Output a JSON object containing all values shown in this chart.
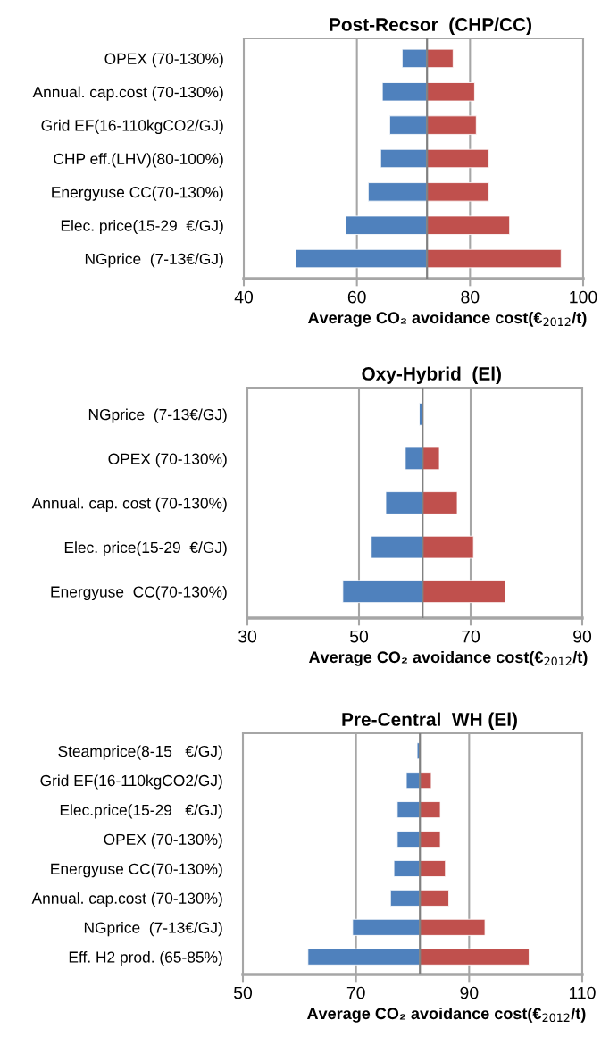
{
  "chart_data": [
    {
      "type": "bar",
      "orientation": "horizontal",
      "title": "Post-Recsor  (CHP/CC)",
      "xlabel": "Average CO₂ avoidance cost(€$_{2012}$/t)",
      "categories": [
        "OPEX (70-130%)",
        "Annual. cap.cost (70-130%)",
        "Grid EF(16-110kgCO2/GJ)",
        "CHP eff.(LHV)(80-100%)",
        "Energyuse CC(70-130%)",
        "Elec. price(15-29  €/GJ)",
        "NGprice  (7-13€/GJ)"
      ],
      "series": [
        {
          "color": "#4f81bd",
          "base": [
            68.0,
            64.5,
            65.8,
            64.2,
            62.0,
            58.0,
            49.2
          ],
          "values": [
            4.4,
            7.9,
            6.6,
            8.2,
            10.4,
            14.4,
            23.2
          ]
        },
        {
          "color": "#c0504d",
          "base": [
            72.4,
            72.4,
            72.4,
            72.4,
            72.4,
            72.4,
            72.4
          ],
          "values": [
            4.6,
            8.4,
            8.7,
            10.9,
            10.9,
            14.6,
            23.7
          ]
        }
      ],
      "xlim": [
        40,
        100
      ],
      "xticks": [
        40,
        60,
        80,
        100
      ],
      "grid": "x",
      "ref_lines": [
        {
          "axis": "x",
          "value": 72.4,
          "color": "#808080"
        }
      ]
    },
    {
      "type": "bar",
      "orientation": "horizontal",
      "title": "Oxy-Hybrid  (El)",
      "xlabel": "Average CO₂ avoidance cost(€$_{2012}$/t)",
      "categories": [
        "NGprice  (7-13€/GJ)",
        "OPEX (70-130%)",
        "Annual. cap. cost (70-130%)",
        "Elec. price(15-29  €/GJ)",
        "Energyuse  CC(70-130%)"
      ],
      "series": [
        {
          "color": "#4f81bd",
          "base": [
            60.8,
            58.3,
            54.8,
            52.2,
            47.1
          ],
          "values": [
            0.6,
            3.1,
            6.6,
            9.2,
            14.3
          ]
        },
        {
          "color": "#c0504d",
          "base": [
            null,
            61.4,
            61.4,
            61.4,
            61.4
          ],
          "values": [
            null,
            3.0,
            6.2,
            9.1,
            14.8
          ]
        }
      ],
      "xlim": [
        30,
        90
      ],
      "xticks": [
        30,
        50,
        70,
        90
      ],
      "grid": "x",
      "ref_lines": [
        {
          "axis": "x",
          "value": 61.4,
          "color": "#808080"
        }
      ]
    },
    {
      "type": "bar",
      "orientation": "horizontal",
      "title": "Pre-Central  WH (El)",
      "xlabel": "Average CO₂ avoidance cost(€$_{2012}$/t)",
      "categories": [
        "Steamprice(8-15   €/GJ)",
        "Grid EF(16-110kgCO2/GJ)",
        "Elec.price(15-29   €/GJ)",
        "OPEX (70-130%)",
        "Energyuse CC(70-130%)",
        "Annual. cap.cost (70-130%)",
        "NGprice  (7-13€/GJ)",
        "Eff. H2 prod. (65-85%)"
      ],
      "series": [
        {
          "color": "#4f81bd",
          "base": [
            80.8,
            78.9,
            77.3,
            77.3,
            76.7,
            76.1,
            69.4,
            61.5
          ],
          "values": [
            0.5,
            2.4,
            4.0,
            4.0,
            4.6,
            5.2,
            11.9,
            19.8
          ]
        },
        {
          "color": "#c0504d",
          "base": [
            null,
            81.3,
            81.3,
            81.3,
            81.3,
            81.3,
            81.3,
            81.3
          ],
          "values": [
            null,
            2.0,
            3.6,
            3.6,
            4.5,
            5.1,
            11.5,
            19.3
          ]
        }
      ],
      "xlim": [
        50,
        110
      ],
      "xticks": [
        50,
        70,
        90,
        110
      ],
      "grid": "x",
      "ref_lines": [
        {
          "axis": "x",
          "value": 81.3,
          "color": "#808080"
        }
      ]
    }
  ]
}
